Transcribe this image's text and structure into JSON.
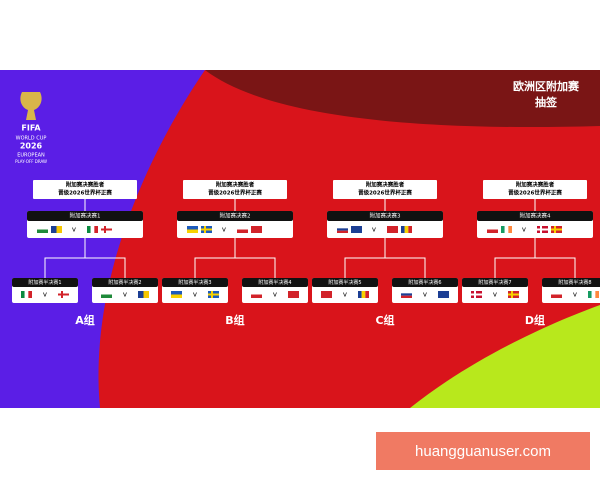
{
  "header": {
    "title": "欧洲区附加赛",
    "subtitle": "抽签"
  },
  "logo": {
    "brand": "FIFA",
    "line1": "WORLD CUP",
    "year": "2026",
    "line2": "EUROPEAN",
    "line3": "PLAY-OFF DRAW"
  },
  "versus": "v",
  "groups": [
    {
      "winner": [
        "附加赛决赛胜者",
        "晋级2026世界杯正赛"
      ],
      "final": "附加赛决赛1",
      "semis": [
        "附加赛半决赛1",
        "附加赛半决赛2"
      ],
      "label": "A组"
    },
    {
      "winner": [
        "附加赛决赛胜者",
        "晋级2026世界杯正赛"
      ],
      "final": "附加赛决赛2",
      "semis": [
        "附加赛半决赛3",
        "附加赛半决赛4"
      ],
      "label": "B组"
    },
    {
      "winner": [
        "附加赛决赛胜者",
        "晋级2026世界杯正赛"
      ],
      "final": "附加赛决赛3",
      "semis": [
        "附加赛半决赛5",
        "附加赛半决赛6"
      ],
      "label": "C组"
    },
    {
      "winner": [
        "附加赛决赛胜者",
        "晋级2026世界杯正赛"
      ],
      "final": "附加赛决赛4",
      "semis": [
        "附加赛半决赛7",
        "附加赛半决赛8"
      ],
      "label": "D组"
    }
  ],
  "watermark": "huangguanuser.com"
}
